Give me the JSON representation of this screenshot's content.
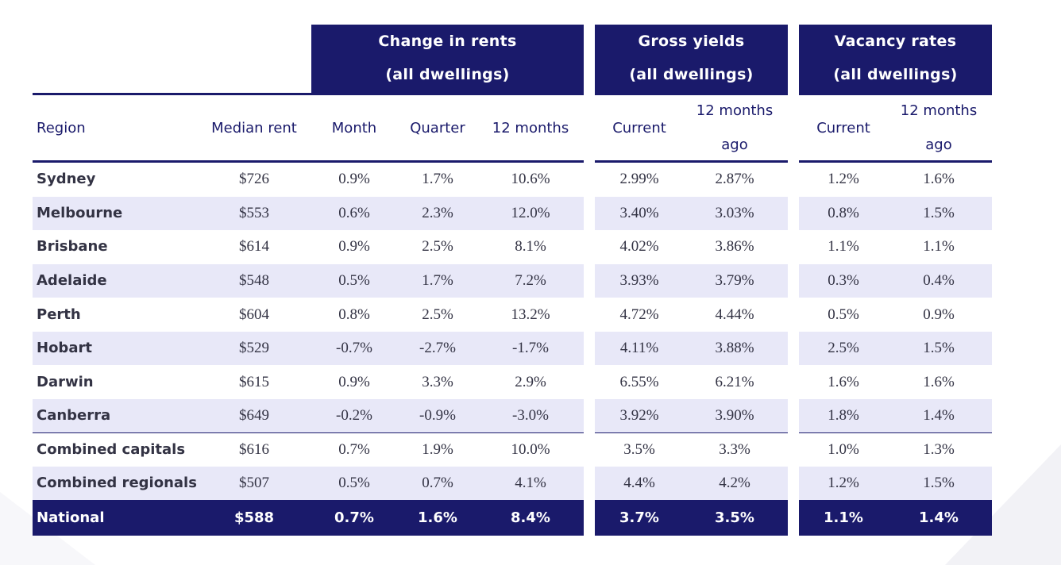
{
  "chart_data": {
    "type": "table",
    "group_headers": [
      {
        "line1": "Change in rents",
        "line2": "(all dwellings)"
      },
      {
        "line1": "Gross yields",
        "line2": "(all dwellings)"
      },
      {
        "line1": "Vacancy rates",
        "line2": "(all dwellings)"
      }
    ],
    "columns": [
      {
        "line1": "Region",
        "line2": ""
      },
      {
        "line1": "Median rent",
        "line2": ""
      },
      {
        "line1": "Month",
        "line2": ""
      },
      {
        "line1": "Quarter",
        "line2": ""
      },
      {
        "line1": "12 months",
        "line2": ""
      },
      {
        "line1": "Current",
        "line2": ""
      },
      {
        "line1": "12 months",
        "line2": "ago"
      },
      {
        "line1": "Current",
        "line2": ""
      },
      {
        "line1": "12 months",
        "line2": "ago"
      }
    ],
    "rows": [
      [
        "Sydney",
        "$726",
        "0.9%",
        "1.7%",
        "10.6%",
        "2.99%",
        "2.87%",
        "1.2%",
        "1.6%"
      ],
      [
        "Melbourne",
        "$553",
        "0.6%",
        "2.3%",
        "12.0%",
        "3.40%",
        "3.03%",
        "0.8%",
        "1.5%"
      ],
      [
        "Brisbane",
        "$614",
        "0.9%",
        "2.5%",
        "8.1%",
        "4.02%",
        "3.86%",
        "1.1%",
        "1.1%"
      ],
      [
        "Adelaide",
        "$548",
        "0.5%",
        "1.7%",
        "7.2%",
        "3.93%",
        "3.79%",
        "0.3%",
        "0.4%"
      ],
      [
        "Perth",
        "$604",
        "0.8%",
        "2.5%",
        "13.2%",
        "4.72%",
        "4.44%",
        "0.5%",
        "0.9%"
      ],
      [
        "Hobart",
        "$529",
        "-0.7%",
        "-2.7%",
        "-1.7%",
        "4.11%",
        "3.88%",
        "2.5%",
        "1.5%"
      ],
      [
        "Darwin",
        "$615",
        "0.9%",
        "3.3%",
        "2.9%",
        "6.55%",
        "6.21%",
        "1.6%",
        "1.6%"
      ],
      [
        "Canberra",
        "$649",
        "-0.2%",
        "-0.9%",
        "-3.0%",
        "3.92%",
        "3.90%",
        "1.8%",
        "1.4%"
      ],
      [
        "Combined capitals",
        "$616",
        "0.7%",
        "1.9%",
        "10.0%",
        "3.5%",
        "3.3%",
        "1.0%",
        "1.3%"
      ],
      [
        "Combined regionals",
        "$507",
        "0.5%",
        "0.7%",
        "4.1%",
        "4.4%",
        "4.2%",
        "1.2%",
        "1.5%"
      ],
      [
        "National",
        "$588",
        "0.7%",
        "1.6%",
        "8.4%",
        "3.7%",
        "3.5%",
        "1.1%",
        "1.4%"
      ]
    ]
  },
  "colors": {
    "navy": "#1a1a6b",
    "band": "#e8e8f8",
    "text": "#333344"
  }
}
